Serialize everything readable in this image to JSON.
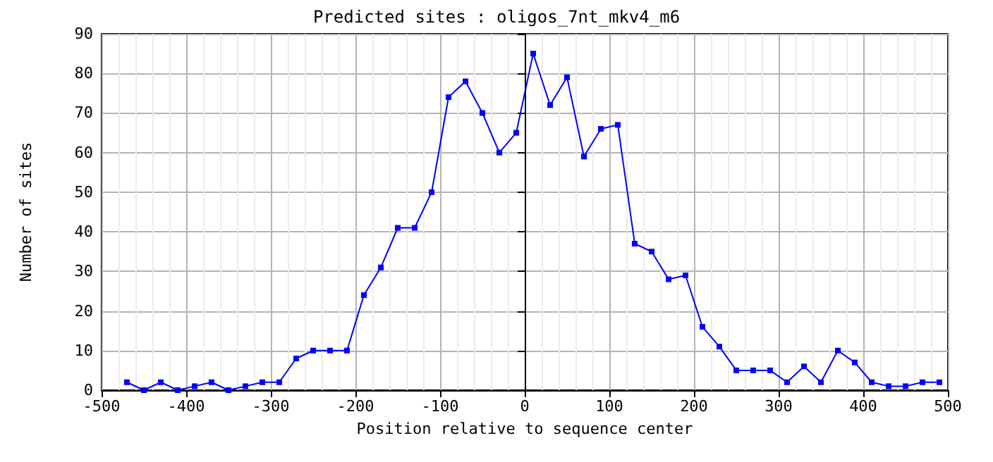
{
  "chart_data": {
    "type": "line",
    "title": "Predicted sites : oligos_7nt_mkv4_m6",
    "xlabel": "Position relative to sequence center",
    "ylabel": "Number of sites",
    "x": [
      -470,
      -450,
      -430,
      -410,
      -390,
      -370,
      -350,
      -330,
      -310,
      -290,
      -270,
      -250,
      -230,
      -210,
      -190,
      -170,
      -150,
      -130,
      -110,
      -90,
      -70,
      -50,
      -30,
      -10,
      10,
      30,
      50,
      70,
      90,
      110,
      130,
      150,
      170,
      190,
      210,
      230,
      250,
      270,
      290,
      310,
      330,
      350,
      370,
      390,
      410,
      430,
      450,
      470,
      490
    ],
    "series": [
      {
        "color": "#0000ff",
        "values": [
          2,
          0,
          2,
          0,
          1,
          2,
          0,
          1,
          2,
          2,
          8,
          10,
          10,
          10,
          24,
          31,
          41,
          41,
          50,
          74,
          78,
          70,
          60,
          65,
          85,
          72,
          79,
          59,
          66,
          67,
          37,
          35,
          28,
          29,
          16,
          11,
          5,
          5,
          5,
          2,
          6,
          2,
          10,
          7,
          2,
          1,
          1,
          2,
          2
        ]
      }
    ],
    "xlim": [
      -500,
      500
    ],
    "xticks": [
      -500,
      -400,
      -300,
      -200,
      -100,
      0,
      100,
      200,
      300,
      400,
      500
    ],
    "ylim": [
      0,
      90
    ],
    "yticks": [
      0,
      10,
      20,
      30,
      40,
      50,
      60,
      70,
      80,
      90
    ],
    "ref_lines": [
      {
        "axis": "x",
        "value": 0,
        "color": "#000000"
      }
    ],
    "grid": true,
    "marker": "square",
    "line_style": "solid"
  }
}
